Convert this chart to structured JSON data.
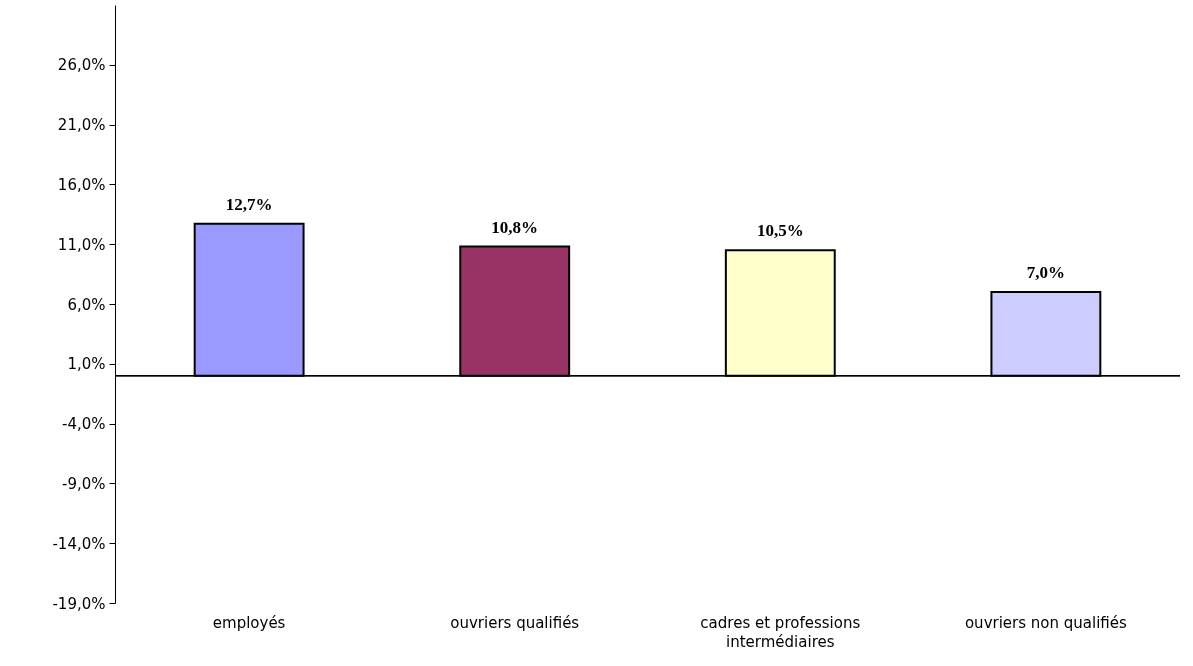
{
  "chart_data": {
    "type": "bar",
    "categories": [
      "employés",
      "ouvriers qualifiés",
      "cadres et professions intermédiaires",
      "ouvriers non qualifiés"
    ],
    "values": [
      12.7,
      10.8,
      10.5,
      7.0
    ],
    "colors": [
      "#9999ff",
      "#993366",
      "#ffffcc",
      "#ccccff"
    ],
    "value_labels": [
      "12,7%",
      "10,8%",
      "10,5%",
      "7,0%"
    ],
    "ylim": [
      -19,
      31
    ],
    "yticks": [
      {
        "value": -19,
        "label": "-19,0%"
      },
      {
        "value": -14,
        "label": "-14,0%"
      },
      {
        "value": -9,
        "label": "-9,0%"
      },
      {
        "value": -4,
        "label": "-4,0%"
      },
      {
        "value": 1,
        "label": "1,0%"
      },
      {
        "value": 6,
        "label": "6,0%"
      },
      {
        "value": 11,
        "label": "11,0%"
      },
      {
        "value": 16,
        "label": "16,0%"
      },
      {
        "value": 21,
        "label": "21,0%"
      },
      {
        "value": 26,
        "label": "26,0%"
      }
    ],
    "grid": false
  }
}
